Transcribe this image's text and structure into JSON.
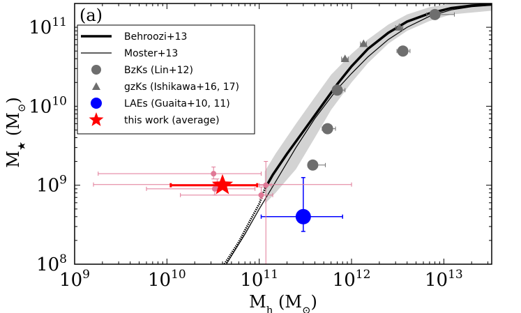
{
  "chart_data": {
    "type": "scatter",
    "panel_label": "(a)",
    "xlabel": "M_h (M_⊙)",
    "ylabel": "M_★ (M_⊙)",
    "xscale": "log",
    "yscale": "log",
    "xlim": [
      1000000000.0,
      33000000000000.0
    ],
    "ylim": [
      100000000.0,
      200000000000.0
    ],
    "x_ticks": [
      {
        "value": 1000000000.0,
        "base": "10",
        "exp": "9"
      },
      {
        "value": 10000000000.0,
        "base": "10",
        "exp": "10"
      },
      {
        "value": 100000000000.0,
        "base": "10",
        "exp": "11"
      },
      {
        "value": 1000000000000.0,
        "base": "10",
        "exp": "12"
      },
      {
        "value": 10000000000000.0,
        "base": "10",
        "exp": "13"
      }
    ],
    "y_ticks": [
      {
        "value": 100000000.0,
        "base": "10",
        "exp": "8"
      },
      {
        "value": 1000000000.0,
        "base": "10",
        "exp": "9"
      },
      {
        "value": 10000000000.0,
        "base": "10",
        "exp": "10"
      },
      {
        "value": 100000000000.0,
        "base": "10",
        "exp": "11"
      }
    ],
    "legend": {
      "placement": "top-left",
      "entries": [
        {
          "label": "Behroozi+13",
          "symbol": "line-thick",
          "color": "#000000"
        },
        {
          "label": "Moster+13",
          "symbol": "line-thin",
          "color": "#000000"
        },
        {
          "label": "BzKs (Lin+12)",
          "symbol": "circle",
          "color": "#6e6e6e"
        },
        {
          "label": "gzKs (Ishikawa+16, 17)",
          "symbol": "triangle",
          "color": "#6e6e6e"
        },
        {
          "label": "LAEs (Guaita+10, 11)",
          "symbol": "circle",
          "color": "#0000ff"
        },
        {
          "label": "this work (average)",
          "symbol": "star",
          "color": "#ff0000"
        }
      ]
    },
    "series": [
      {
        "name": "Behroozi+13",
        "kind": "line",
        "color": "#000000",
        "band_color": "#d3d3d3",
        "points": [
          [
            115000000000.0,
            900000000.0
          ],
          [
            140000000000.0,
            1350000000.0
          ],
          [
            200000000000.0,
            2500000000.0
          ],
          [
            300000000000.0,
            4800000000.0
          ],
          [
            500000000000.0,
            11000000000.0
          ],
          [
            700000000000.0,
            19000000000.0
          ],
          [
            1000000000000.0,
            32000000000.0
          ],
          [
            1500000000000.0,
            53000000000.0
          ],
          [
            2500000000000.0,
            85000000000.0
          ],
          [
            4000000000000.0,
            118000000000.0
          ],
          [
            7000000000000.0,
            150000000000.0
          ],
          [
            12000000000000.0,
            175000000000.0
          ],
          [
            20000000000000.0,
            188000000000.0
          ],
          [
            33000000000000.0,
            195000000000.0
          ]
        ],
        "band_upper": [
          [
            115000000000.0,
            1500000000.0
          ],
          [
            150000000000.0,
            2500000000.0
          ],
          [
            250000000000.0,
            6000000000.0
          ],
          [
            400000000000.0,
            13000000000.0
          ],
          [
            600000000000.0,
            25000000000.0
          ],
          [
            1000000000000.0,
            46000000000.0
          ],
          [
            1500000000000.0,
            70000000000.0
          ],
          [
            2500000000000.0,
            108000000000.0
          ],
          [
            4000000000000.0,
            145000000000.0
          ],
          [
            7000000000000.0,
            180000000000.0
          ],
          [
            12000000000000.0,
            200000000000.0
          ],
          [
            33000000000000.0,
            200000000000.0
          ]
        ],
        "band_lower": [
          [
            115000000000.0,
            580000000.0
          ],
          [
            150000000000.0,
            800000000.0
          ],
          [
            250000000000.0,
            1600000000.0
          ],
          [
            400000000000.0,
            4000000000.0
          ],
          [
            600000000000.0,
            9000000000.0
          ],
          [
            1000000000000.0,
            20000000000.0
          ],
          [
            1500000000000.0,
            35000000000.0
          ],
          [
            2500000000000.0,
            62000000000.0
          ],
          [
            4000000000000.0,
            90000000000.0
          ],
          [
            7000000000000.0,
            120000000000.0
          ],
          [
            12000000000000.0,
            145000000000.0
          ],
          [
            33000000000000.0,
            162000000000.0
          ]
        ]
      },
      {
        "name": "Behroozi+13 extrapolation",
        "kind": "dotted",
        "color": "#000000",
        "points": [
          [
            42000000000.0,
            100000000.0
          ],
          [
            60000000000.0,
            190000000.0
          ],
          [
            80000000000.0,
            360000000.0
          ],
          [
            100000000000.0,
            580000000.0
          ],
          [
            115000000000.0,
            900000000.0
          ]
        ]
      },
      {
        "name": "Moster+13",
        "kind": "line-thin",
        "color": "#000000",
        "points": [
          [
            44000000000.0,
            100000000.0
          ],
          [
            70000000000.0,
            240000000.0
          ],
          [
            100000000000.0,
            500000000.0
          ],
          [
            150000000000.0,
            1100000000.0
          ],
          [
            250000000000.0,
            3000000000.0
          ],
          [
            400000000000.0,
            7000000000.0
          ],
          [
            700000000000.0,
            16500000000.0
          ],
          [
            1000000000000.0,
            26000000000.0
          ],
          [
            1500000000000.0,
            42000000000.0
          ],
          [
            2500000000000.0,
            70000000000.0
          ],
          [
            4000000000000.0,
            100000000000.0
          ],
          [
            7000000000000.0,
            138000000000.0
          ],
          [
            12000000000000.0,
            166000000000.0
          ],
          [
            20000000000000.0,
            182000000000.0
          ],
          [
            33000000000000.0,
            190000000000.0
          ]
        ]
      },
      {
        "name": "BzKs (Lin+12)",
        "kind": "points",
        "marker": "circle",
        "color": "#6e6e6e",
        "points": [
          {
            "x": 380000000000.0,
            "y": 1800000000.0,
            "xerr": [
              380000000000.0,
              520000000000.0
            ]
          },
          {
            "x": 550000000000.0,
            "y": 5200000000.0,
            "xerr": [
              480000000000.0,
              670000000000.0
            ]
          },
          {
            "x": 700000000000.0,
            "y": 16000000000.0,
            "xerr": [
              630000000000.0,
              850000000000.0
            ]
          },
          {
            "x": 3600000000000.0,
            "y": 50000000000.0,
            "xerr": [
              3100000000000.0,
              4300000000000.0
            ]
          },
          {
            "x": 8000000000000.0,
            "y": 145000000000.0,
            "xerr": [
              6500000000000.0,
              13000000000000.0
            ]
          }
        ]
      },
      {
        "name": "gzKs (Ishikawa+16, 17)",
        "kind": "points",
        "marker": "triangle",
        "color": "#6e6e6e",
        "points": [
          {
            "x": 850000000000.0,
            "y": 40000000000.0,
            "xerr": [
              780000000000.0,
              920000000000.0
            ]
          },
          {
            "x": 1350000000000.0,
            "y": 62000000000.0,
            "xerr": [
              1250000000000.0,
              1450000000000.0
            ]
          },
          {
            "x": 3300000000000.0,
            "y": 100000000000.0,
            "xerr": [
              3000000000000.0,
              3600000000000.0
            ]
          }
        ]
      },
      {
        "name": "LAEs (Guaita+10, 11)",
        "kind": "points",
        "marker": "circle",
        "color": "#0000ff",
        "points": [
          {
            "x": 300000000000.0,
            "y": 400000000.0,
            "xerr": [
              105000000000.0,
              800000000000.0
            ],
            "yerr": [
              260000000.0,
              1250000000.0
            ]
          }
        ]
      },
      {
        "name": "this work (individual)",
        "kind": "points",
        "marker": "circle",
        "color": "#e07896",
        "points": [
          {
            "x": 32000000000.0,
            "y": 1400000000.0,
            "xerr": [
              1800000000.0,
              105000000000.0
            ],
            "yerr": [
              1200000000.0,
              1700000000.0
            ]
          },
          {
            "x": 33000000000.0,
            "y": 900000000.0,
            "xerr": [
              6000000000.0,
              90000000000.0
            ],
            "yerr": [
              750000000.0,
              1050000000.0
            ]
          },
          {
            "x": 35000000000.0,
            "y": 1020000000.0,
            "xerr": [
              1600000000.0,
              1000000000000.0
            ],
            "yerr": [
              850000000.0,
              1200000000.0
            ]
          },
          {
            "x": 105000000000.0,
            "y": 750000000.0,
            "xerr": [
              14000000000.0,
              140000000000.0
            ],
            "yerr": [
              680000000.0,
              950000000.0
            ]
          },
          {
            "x": 118000000000.0,
            "y": 1000000000.0,
            "xerr": [
              100000000000.0,
              135000000000.0
            ],
            "yerr": [
              100000000.0,
              2000000000.0
            ]
          }
        ]
      },
      {
        "name": "this work (average)",
        "kind": "points",
        "marker": "star",
        "color": "#ff0000",
        "points": [
          {
            "x": 40000000000.0,
            "y": 1000000000.0,
            "xerr": [
              11000000000.0,
              95000000000.0
            ]
          }
        ]
      }
    ]
  }
}
